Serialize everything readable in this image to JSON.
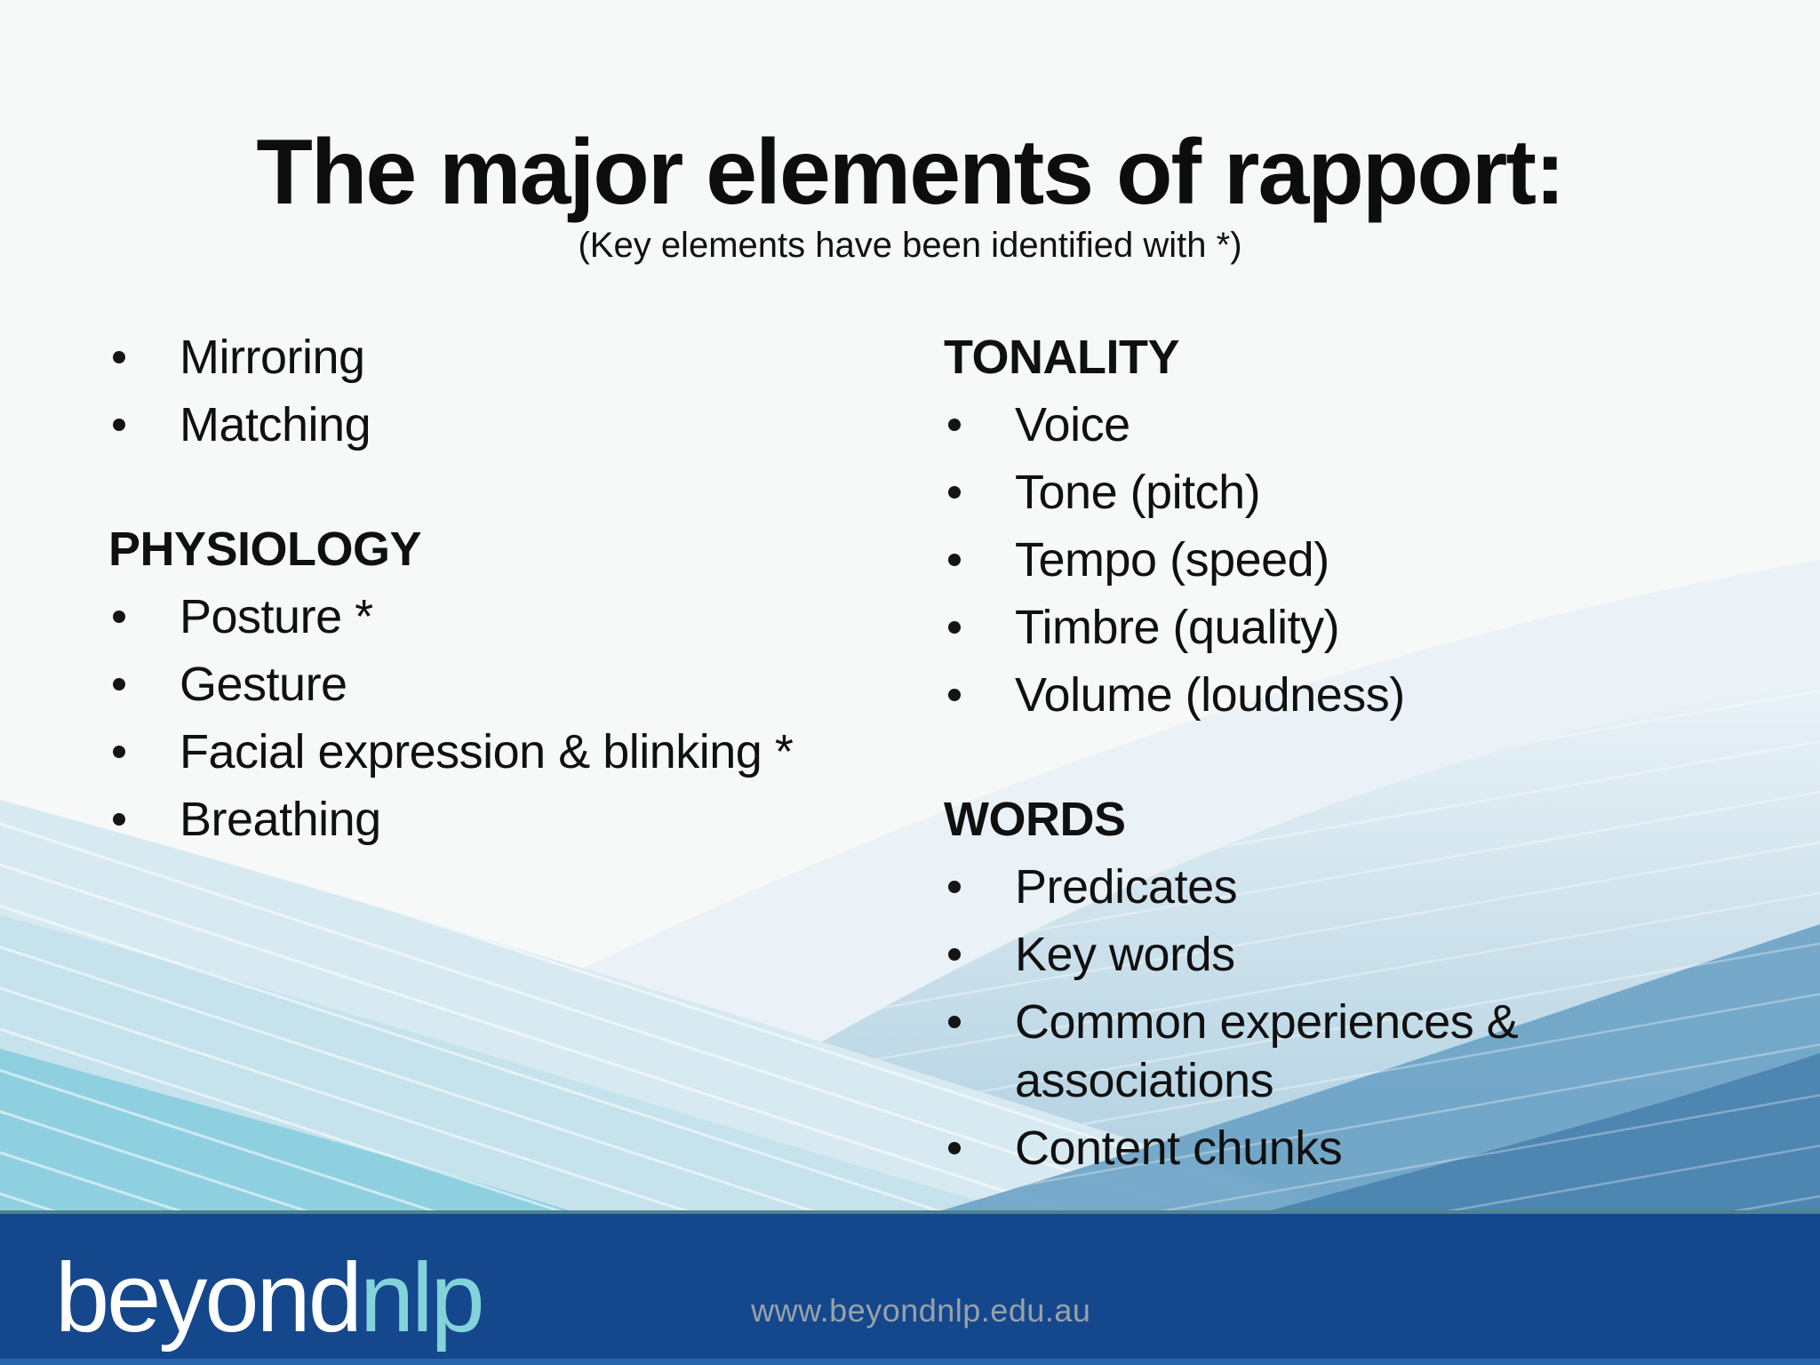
{
  "slide": {
    "title": "The major elements of rapport:",
    "subtitle": "(Key elements have been identified with *)",
    "columns": {
      "left": {
        "intro_items": [
          "Mirroring",
          "Matching"
        ],
        "physiology": {
          "heading": "PHYSIOLOGY",
          "items": [
            "Posture *",
            "Gesture",
            "Facial expression & blinking *",
            "Breathing"
          ]
        }
      },
      "right": {
        "tonality": {
          "heading": "TONALITY",
          "items": [
            "Voice",
            "Tone (pitch)",
            "Tempo (speed)",
            "Timbre (quality)",
            "Volume (loudness)"
          ]
        },
        "words": {
          "heading": "WORDS",
          "items": [
            "Predicates",
            "Key words",
            "Common experiences & associations",
            "Content chunks"
          ]
        }
      }
    }
  },
  "footer": {
    "logo_beyond": "beyond",
    "logo_nlp": "nlp",
    "url": "www.beyondnlp.edu.au"
  },
  "colors": {
    "footer_bar": "#15478d",
    "footer_top_line": "#4e8292",
    "footer_bottom_strip": "#2a64ab",
    "logo_white": "#ffffff",
    "logo_teal": "#82d3da",
    "url_gray": "#99a1a7",
    "text": "#141414",
    "wave_light": "#d8eaf1",
    "wave_mid": "#c6e3ed",
    "wave_bright_teal": "#8fd0e0",
    "wave_blue_band": "#6ba2c5",
    "wave_deep_blue_band": "#4e86b2"
  }
}
